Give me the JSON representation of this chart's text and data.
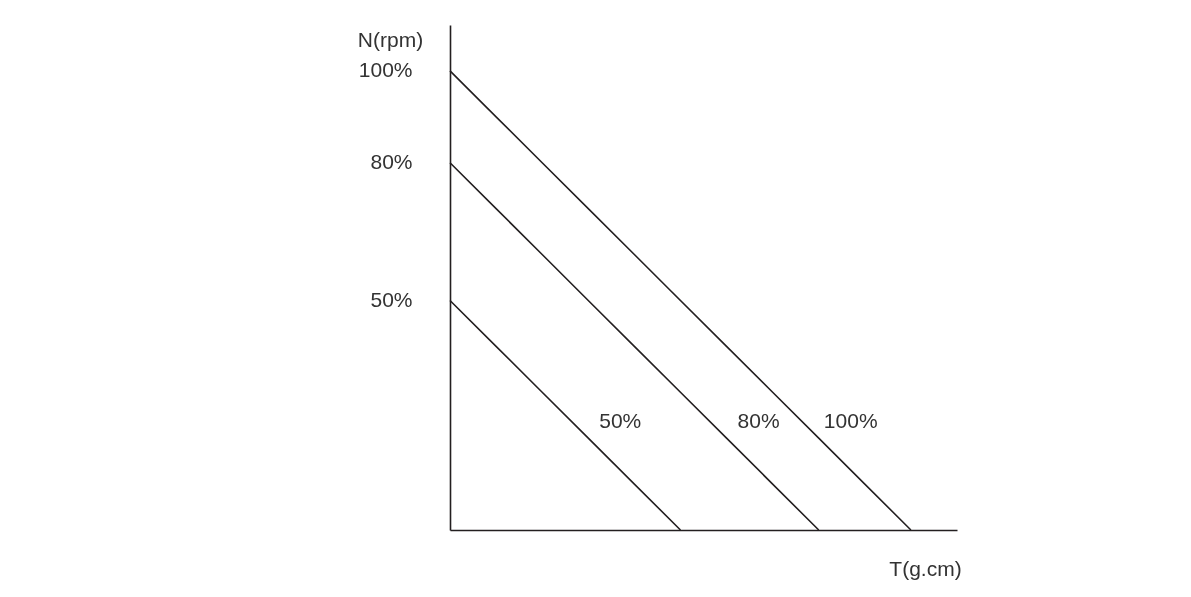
{
  "chart_data": {
    "type": "line",
    "xlabel": "T(g.cm)",
    "ylabel": "N(rpm)",
    "categories": [
      null,
      null,
      null,
      null,
      null,
      null,
      null,
      null,
      null,
      null,
      null,
      null
    ],
    "ylim": [
      0,
      110
    ],
    "yticks": [
      {
        "value": 50,
        "label": "50%"
      },
      {
        "value": 80,
        "label": "80%"
      },
      {
        "value": 100,
        "label": "100%"
      }
    ],
    "tick_labels": "y",
    "grid": false,
    "legend": false,
    "marker": "none",
    "line_style": "solid",
    "series": [
      {
        "name": "100%",
        "color": "#231f20",
        "values": [
          100,
          90,
          80,
          70,
          60,
          50,
          40,
          30,
          20,
          10,
          0,
          null
        ]
      },
      {
        "name": "80%",
        "color": "#231f20",
        "values": [
          80,
          70,
          60,
          50,
          40,
          30,
          20,
          10,
          0,
          null,
          null,
          null
        ]
      },
      {
        "name": "50%",
        "color": "#231f20",
        "values": [
          50,
          40,
          30,
          20,
          10,
          0,
          null,
          null,
          null,
          null,
          null,
          null
        ]
      }
    ]
  }
}
